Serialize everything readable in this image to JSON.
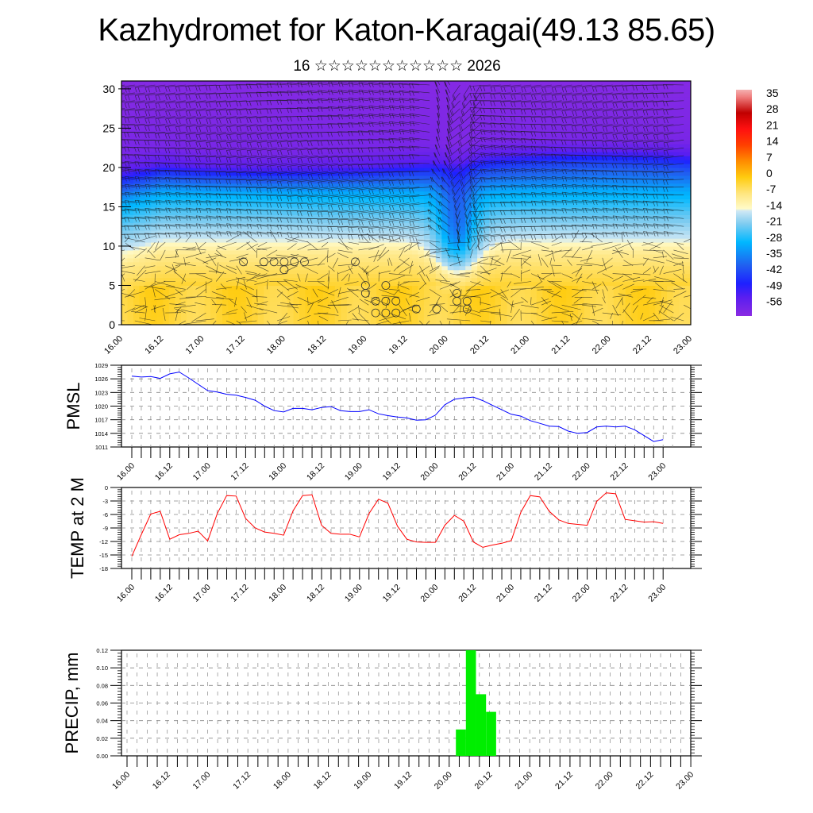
{
  "header": {
    "title": "Kazhydromet for Katon-Karagai(49.13 85.65)",
    "subtitle": "16 ☆☆☆☆☆☆☆☆☆☆☆ 2026"
  },
  "colors": {
    "pmsl_line": "#0000ff",
    "temp_line": "#ff0000",
    "precip_bar": "#00ee00",
    "grid": "#777777"
  },
  "time_ticks": [
    "16.00",
    "16.12",
    "17.00",
    "17.12",
    "18.00",
    "18.12",
    "19.00",
    "19.12",
    "20.00",
    "20.12",
    "21.00",
    "21.12",
    "22.00",
    "22.12",
    "23.00"
  ],
  "chart_data": [
    {
      "id": "cross-section",
      "type": "heatmap",
      "title": "",
      "xlabel": "",
      "ylabel": "",
      "x_ticks": [
        "16.00",
        "16.12",
        "17.00",
        "17.12",
        "18.00",
        "18.12",
        "19.00",
        "19.12",
        "20.00",
        "20.12",
        "21.00",
        "21.12",
        "22.00",
        "22.12",
        "23.00"
      ],
      "y_ticks": [
        0,
        5,
        10,
        15,
        20,
        25,
        30
      ],
      "ylim": [
        0,
        31
      ],
      "description": "Time-height cross-section of temperature (filled contours) with wind barbs; calm markers (circles) in lower layers",
      "colorbar": {
        "labels": [
          35,
          28,
          21,
          14,
          7,
          0,
          -7,
          -14,
          -21,
          -28,
          -35,
          -42,
          -49,
          -56
        ],
        "range": [
          -60,
          38
        ],
        "stops": [
          {
            "value": -60,
            "color": "#8a2be2"
          },
          {
            "value": -52,
            "color": "#5a1ef0"
          },
          {
            "value": -46,
            "color": "#1e20ff"
          },
          {
            "value": -38,
            "color": "#2060f0"
          },
          {
            "value": -28,
            "color": "#00b8ff"
          },
          {
            "value": -20,
            "color": "#80ccf0"
          },
          {
            "value": -14.5,
            "color": "#cfe8f5"
          },
          {
            "value": -13.5,
            "color": "#fffac8"
          },
          {
            "value": -7,
            "color": "#ffe680"
          },
          {
            "value": 0,
            "color": "#ffcc10"
          },
          {
            "value": 7,
            "color": "#ff8c00"
          },
          {
            "value": 14,
            "color": "#ff4000"
          },
          {
            "value": 21,
            "color": "#ff1010"
          },
          {
            "value": 28,
            "color": "#c00000"
          },
          {
            "value": 35,
            "color": "#f08080"
          },
          {
            "value": 38,
            "color": "#f4b0b0"
          }
        ]
      },
      "level_temps_profile": {
        "heights": [
          0,
          5,
          9,
          11,
          14,
          17,
          19.5,
          21,
          23,
          26,
          31
        ],
        "temps": [
          -3,
          -2,
          -8,
          -15,
          -22,
          -30,
          -42,
          -52,
          -57,
          -58,
          -59
        ]
      },
      "calm_markers": [
        [
          17.12,
          8.0
        ],
        [
          17.18,
          8.0
        ],
        [
          17.21,
          8.0
        ],
        [
          18.0,
          8.0
        ],
        [
          18.03,
          8.0
        ],
        [
          18.06,
          8.0
        ],
        [
          18.0,
          7.0
        ],
        [
          18.21,
          8.0
        ],
        [
          19.0,
          5.0
        ],
        [
          19.0,
          4.0
        ],
        [
          19.06,
          5.0
        ],
        [
          19.03,
          3.0
        ],
        [
          19.06,
          3.0
        ],
        [
          19.09,
          3.0
        ],
        [
          19.03,
          1.5
        ],
        [
          19.06,
          1.5
        ],
        [
          19.09,
          1.5
        ],
        [
          19.15,
          2.0
        ],
        [
          20.03,
          4.0
        ],
        [
          20.03,
          3.0
        ],
        [
          20.06,
          2.0
        ],
        [
          20.06,
          3.0
        ],
        [
          19.21,
          2.0
        ]
      ]
    },
    {
      "id": "pmsl",
      "type": "line",
      "title": "",
      "ylabel": "PMSL",
      "xlabel": "",
      "ylim": [
        1011,
        1029
      ],
      "y_ticks": [
        1029,
        1026,
        1023,
        1020,
        1017,
        1014,
        1011
      ],
      "x_ticks": [
        "16.00",
        "16.12",
        "17.00",
        "17.12",
        "18.00",
        "18.12",
        "19.00",
        "19.12",
        "20.00",
        "20.12",
        "21.00",
        "21.12",
        "22.00",
        "22.12",
        "23.00"
      ],
      "step_hours": 3,
      "start": "16.00",
      "series": [
        {
          "name": "PMSL",
          "values": [
            1026.6,
            1026.4,
            1026.5,
            1026.1,
            1027.1,
            1027.5,
            1026.2,
            1024.8,
            1023.4,
            1023.1,
            1022.6,
            1022.4,
            1021.9,
            1021.3,
            1020.0,
            1019.0,
            1018.7,
            1019.5,
            1019.5,
            1019.2,
            1019.7,
            1019.9,
            1019.0,
            1018.8,
            1018.8,
            1019.2,
            1018.3,
            1017.9,
            1017.6,
            1017.4,
            1016.9,
            1017.0,
            1018.0,
            1020.3,
            1021.5,
            1021.8,
            1022.0,
            1021.2,
            1020.2,
            1019.2,
            1018.2,
            1017.8,
            1016.8,
            1016.2,
            1015.6,
            1015.5,
            1014.5,
            1014.0,
            1014.2,
            1015.4,
            1015.6,
            1015.4,
            1015.6,
            1014.8,
            1013.5,
            1012.2,
            1012.6
          ]
        }
      ]
    },
    {
      "id": "temp2m",
      "type": "line",
      "title": "",
      "ylabel": "TEMP at 2 M",
      "xlabel": "",
      "ylim": [
        -18,
        0
      ],
      "y_ticks": [
        0,
        -3,
        -6,
        -9,
        -12,
        -15,
        -18
      ],
      "x_ticks": [
        "16.00",
        "16.12",
        "17.00",
        "17.12",
        "18.00",
        "18.12",
        "19.00",
        "19.12",
        "20.00",
        "20.12",
        "21.00",
        "21.12",
        "22.00",
        "22.12",
        "23.00"
      ],
      "step_hours": 3,
      "start": "16.00",
      "series": [
        {
          "name": "TEMP",
          "values": [
            -15.3,
            -10.5,
            -5.9,
            -5.3,
            -11.5,
            -10.5,
            -10.2,
            -9.7,
            -11.9,
            -5.8,
            -1.8,
            -1.9,
            -6.9,
            -9.0,
            -9.9,
            -10.2,
            -10.6,
            -5.2,
            -1.8,
            -1.6,
            -8.4,
            -10.2,
            -10.4,
            -10.4,
            -11.0,
            -5.8,
            -2.6,
            -3.5,
            -8.6,
            -11.5,
            -12.1,
            -12.2,
            -12.2,
            -8.4,
            -6.2,
            -7.5,
            -12.1,
            -13.3,
            -12.8,
            -12.4,
            -11.8,
            -5.5,
            -1.8,
            -2.1,
            -5.3,
            -7.2,
            -8.0,
            -8.2,
            -8.4,
            -3.1,
            -1.2,
            -1.4,
            -7.1,
            -7.4,
            -7.7,
            -7.6,
            -8.0
          ]
        }
      ]
    },
    {
      "id": "precip",
      "type": "bar",
      "title": "",
      "ylabel": "PRECIP, mm",
      "xlabel": "",
      "ylim": [
        0,
        0.12
      ],
      "y_ticks": [
        0.12,
        0.1,
        0.08,
        0.06,
        0.04,
        0.02,
        0.0
      ],
      "x_ticks": [
        "16.00",
        "16.12",
        "17.00",
        "17.12",
        "18.00",
        "18.12",
        "19.00",
        "19.12",
        "20.00",
        "20.12",
        "21.00",
        "21.12",
        "22.00",
        "22.12",
        "23.00"
      ],
      "step_hours": 3,
      "bars": [
        {
          "time": "20.00",
          "value": 0.03
        },
        {
          "time": "20.03",
          "value": 0.12
        },
        {
          "time": "20.06",
          "value": 0.07
        },
        {
          "time": "20.09",
          "value": 0.05
        }
      ]
    }
  ]
}
